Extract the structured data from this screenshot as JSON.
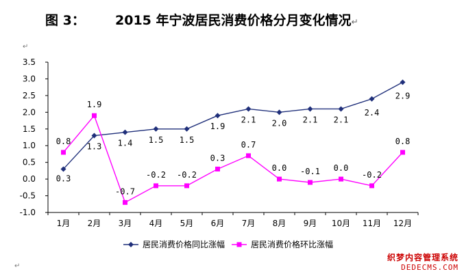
{
  "figure": {
    "number": "图 3：",
    "title": "2015 年宁波居民消费价格分月变化情况",
    "return_mark": "↵"
  },
  "chart_data": {
    "type": "line",
    "categories": [
      "1月",
      "2月",
      "3月",
      "4月",
      "5月",
      "6月",
      "7月",
      "8月",
      "9月",
      "10月",
      "11月",
      "12月"
    ],
    "series": [
      {
        "name": "居民消费价格同比涨幅",
        "values": [
          0.3,
          1.3,
          1.4,
          1.5,
          1.5,
          1.9,
          2.1,
          2.0,
          2.1,
          2.1,
          2.4,
          2.9
        ],
        "labels": [
          "0.3",
          "1.3",
          "1.4",
          "1.5",
          "1.5",
          "1.9",
          "2.1",
          "2.0",
          "2.1",
          "2.1",
          "2.4",
          "2.9"
        ],
        "color": "#1f2f7a",
        "marker": "diamond"
      },
      {
        "name": "居民消费价格环比涨幅",
        "values": [
          0.8,
          1.9,
          -0.7,
          -0.2,
          -0.2,
          0.3,
          0.7,
          0.0,
          -0.1,
          0.0,
          -0.2,
          0.8
        ],
        "labels": [
          "0.8",
          "1.9",
          "-0.7",
          "-0.2",
          "-0.2",
          "0.3",
          "0.7",
          "0.0",
          "-0.1",
          "0.0",
          "-0.2",
          "0.8"
        ],
        "color": "#ff00ff",
        "marker": "square"
      }
    ],
    "y_ticks": [
      "3.5",
      "3.0",
      "2.5",
      "2.0",
      "1.5",
      "1.0",
      "0.5",
      "0.0",
      "-0.5",
      "-1.0"
    ],
    "ylim": [
      -1.0,
      3.5
    ],
    "grid": false,
    "legend_position": "bottom"
  },
  "watermark": {
    "line1": "织梦内容管理系统",
    "line2": "DEDECMS.COM"
  }
}
